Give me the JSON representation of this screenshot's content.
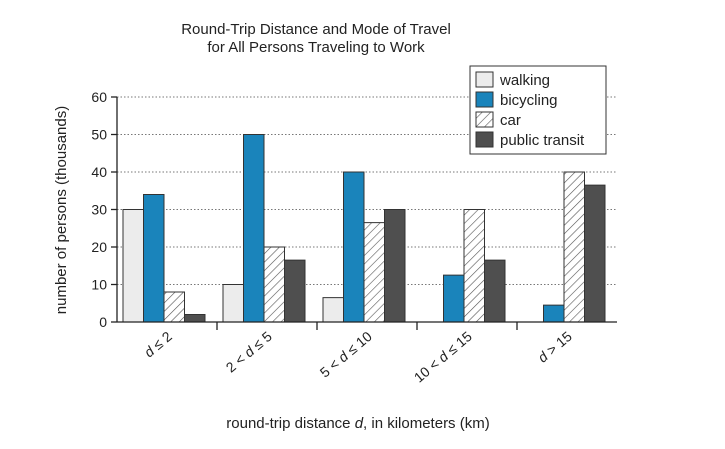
{
  "chart_data": {
    "type": "bar",
    "title_lines": [
      "Round-Trip Distance and Mode of Travel",
      "for All Persons Traveling to Work"
    ],
    "xlabel_parts": [
      "round-trip distance ",
      "d",
      ", in kilometers (km)"
    ],
    "ylabel": "number of persons (thousands)",
    "ylim": [
      0,
      60
    ],
    "yticks": [
      0,
      10,
      20,
      30,
      40,
      50,
      60
    ],
    "grid": "horizontal dotted",
    "legend_position": "top-right",
    "categories": [
      [
        {
          "t": "d",
          "i": true
        },
        {
          "t": " ≤ 2",
          "i": false
        }
      ],
      [
        {
          "t": "2 < ",
          "i": false
        },
        {
          "t": "d",
          "i": true
        },
        {
          "t": " ≤ 5",
          "i": false
        }
      ],
      [
        {
          "t": "5 < ",
          "i": false
        },
        {
          "t": "d",
          "i": true
        },
        {
          "t": " ≤ 10",
          "i": false
        }
      ],
      [
        {
          "t": "10 < ",
          "i": false
        },
        {
          "t": "d",
          "i": true
        },
        {
          "t": " ≤ 15",
          "i": false
        }
      ],
      [
        {
          "t": "d",
          "i": true
        },
        {
          "t": " > 15",
          "i": false
        }
      ]
    ],
    "series": [
      {
        "name": "walking",
        "fill": "#ececec",
        "pattern": "none",
        "values": [
          30,
          10,
          6.5,
          0,
          0
        ]
      },
      {
        "name": "bicycling",
        "fill": "#1a84bb",
        "pattern": "none",
        "values": [
          34,
          50,
          40,
          12.5,
          4.5
        ]
      },
      {
        "name": "car",
        "fill": "#ffffff",
        "pattern": "hatch",
        "values": [
          8,
          20,
          26.5,
          30,
          40
        ]
      },
      {
        "name": "public transit",
        "fill": "#4f4f4f",
        "pattern": "none",
        "values": [
          2,
          16.5,
          30,
          16.5,
          36.5
        ]
      }
    ]
  }
}
